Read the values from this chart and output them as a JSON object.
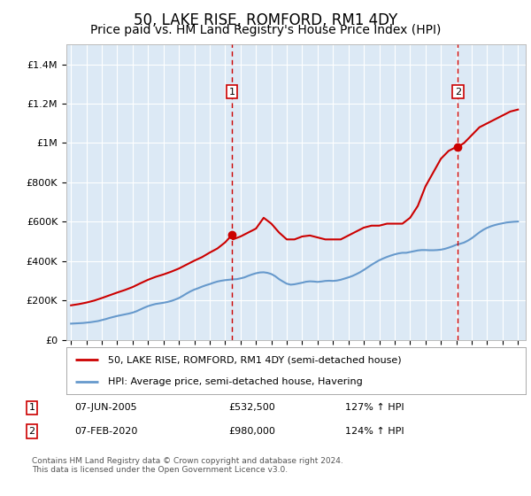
{
  "title": "50, LAKE RISE, ROMFORD, RM1 4DY",
  "subtitle": "Price paid vs. HM Land Registry's House Price Index (HPI)",
  "title_fontsize": 12,
  "subtitle_fontsize": 10,
  "bg_color": "#dce9f5",
  "fig_bg_color": "#ffffff",
  "ylim": [
    0,
    1500000
  ],
  "yticks": [
    0,
    200000,
    400000,
    600000,
    800000,
    1000000,
    1200000,
    1400000
  ],
  "ytick_labels": [
    "£0",
    "£200K",
    "£400K",
    "£600K",
    "£800K",
    "£1M",
    "£1.2M",
    "£1.4M"
  ],
  "xmin": 1994.7,
  "xmax": 2024.5,
  "red_line_color": "#cc0000",
  "blue_line_color": "#6699cc",
  "grid_color": "#ffffff",
  "marker1_x": 2005.44,
  "marker1_y": 532500,
  "marker2_x": 2020.1,
  "marker2_y": 980000,
  "marker1_label": "1",
  "marker2_label": "2",
  "marker_dashed_color": "#cc0000",
  "legend_label_red": "50, LAKE RISE, ROMFORD, RM1 4DY (semi-detached house)",
  "legend_label_blue": "HPI: Average price, semi-detached house, Havering",
  "ann1_date": "07-JUN-2005",
  "ann1_price": "£532,500",
  "ann1_hpi": "127% ↑ HPI",
  "ann2_date": "07-FEB-2020",
  "ann2_price": "£980,000",
  "ann2_hpi": "124% ↑ HPI",
  "footer": "Contains HM Land Registry data © Crown copyright and database right 2024.\nThis data is licensed under the Open Government Licence v3.0.",
  "hpi_years": [
    1995.0,
    1995.25,
    1995.5,
    1995.75,
    1996.0,
    1996.25,
    1996.5,
    1996.75,
    1997.0,
    1997.25,
    1997.5,
    1997.75,
    1998.0,
    1998.25,
    1998.5,
    1998.75,
    1999.0,
    1999.25,
    1999.5,
    1999.75,
    2000.0,
    2000.25,
    2000.5,
    2000.75,
    2001.0,
    2001.25,
    2001.5,
    2001.75,
    2002.0,
    2002.25,
    2002.5,
    2002.75,
    2003.0,
    2003.25,
    2003.5,
    2003.75,
    2004.0,
    2004.25,
    2004.5,
    2004.75,
    2005.0,
    2005.25,
    2005.5,
    2005.75,
    2006.0,
    2006.25,
    2006.5,
    2006.75,
    2007.0,
    2007.25,
    2007.5,
    2007.75,
    2008.0,
    2008.25,
    2008.5,
    2008.75,
    2009.0,
    2009.25,
    2009.5,
    2009.75,
    2010.0,
    2010.25,
    2010.5,
    2010.75,
    2011.0,
    2011.25,
    2011.5,
    2011.75,
    2012.0,
    2012.25,
    2012.5,
    2012.75,
    2013.0,
    2013.25,
    2013.5,
    2013.75,
    2014.0,
    2014.25,
    2014.5,
    2014.75,
    2015.0,
    2015.25,
    2015.5,
    2015.75,
    2016.0,
    2016.25,
    2016.5,
    2016.75,
    2017.0,
    2017.25,
    2017.5,
    2017.75,
    2018.0,
    2018.25,
    2018.5,
    2018.75,
    2019.0,
    2019.25,
    2019.5,
    2019.75,
    2020.0,
    2020.25,
    2020.5,
    2020.75,
    2021.0,
    2021.25,
    2021.5,
    2021.75,
    2022.0,
    2022.25,
    2022.5,
    2022.75,
    2023.0,
    2023.25,
    2023.5,
    2023.75,
    2024.0
  ],
  "hpi_values": [
    82000,
    83000,
    84000,
    85000,
    87000,
    89000,
    92000,
    95000,
    100000,
    105000,
    111000,
    116000,
    121000,
    125000,
    129000,
    133000,
    138000,
    145000,
    154000,
    163000,
    171000,
    177000,
    182000,
    185000,
    188000,
    192000,
    197000,
    204000,
    212000,
    223000,
    235000,
    246000,
    255000,
    262000,
    270000,
    277000,
    283000,
    290000,
    296000,
    300000,
    303000,
    305000,
    307000,
    308000,
    312000,
    317000,
    325000,
    332000,
    338000,
    342000,
    343000,
    340000,
    334000,
    323000,
    308000,
    296000,
    285000,
    280000,
    282000,
    286000,
    290000,
    295000,
    297000,
    296000,
    294000,
    296000,
    299000,
    300000,
    299000,
    301000,
    305000,
    311000,
    317000,
    324000,
    333000,
    343000,
    355000,
    368000,
    381000,
    393000,
    404000,
    413000,
    421000,
    428000,
    434000,
    439000,
    442000,
    442000,
    446000,
    450000,
    454000,
    456000,
    456000,
    455000,
    455000,
    456000,
    458000,
    462000,
    468000,
    475000,
    483000,
    488000,
    494000,
    504000,
    516000,
    531000,
    546000,
    559000,
    569000,
    577000,
    583000,
    588000,
    592000,
    596000,
    598000,
    600000,
    601000
  ],
  "red_years": [
    1995.0,
    1995.5,
    1996.0,
    1996.5,
    1997.0,
    1997.5,
    1998.0,
    1998.5,
    1999.0,
    1999.5,
    2000.0,
    2000.5,
    2001.0,
    2001.5,
    2002.0,
    2002.5,
    2003.0,
    2003.5,
    2004.0,
    2004.5,
    2005.0,
    2005.44,
    2005.5,
    2006.0,
    2006.5,
    2007.0,
    2007.5,
    2008.0,
    2008.5,
    2009.0,
    2009.5,
    2010.0,
    2010.5,
    2011.0,
    2011.5,
    2012.0,
    2012.5,
    2013.0,
    2013.5,
    2014.0,
    2014.5,
    2015.0,
    2015.5,
    2016.0,
    2016.5,
    2017.0,
    2017.5,
    2018.0,
    2018.5,
    2019.0,
    2019.5,
    2020.0,
    2020.1,
    2020.5,
    2021.0,
    2021.5,
    2022.0,
    2022.5,
    2023.0,
    2023.5,
    2024.0
  ],
  "red_values": [
    175000,
    181000,
    189000,
    199000,
    212000,
    226000,
    240000,
    253000,
    268000,
    287000,
    305000,
    320000,
    332000,
    346000,
    362000,
    382000,
    402000,
    420000,
    443000,
    464000,
    495000,
    532500,
    510000,
    525000,
    545000,
    565000,
    620000,
    590000,
    545000,
    510000,
    510000,
    525000,
    530000,
    520000,
    510000,
    510000,
    510000,
    530000,
    550000,
    570000,
    580000,
    580000,
    590000,
    590000,
    590000,
    620000,
    680000,
    780000,
    850000,
    920000,
    960000,
    980000,
    980000,
    1000000,
    1040000,
    1080000,
    1100000,
    1120000,
    1140000,
    1160000,
    1170000
  ]
}
